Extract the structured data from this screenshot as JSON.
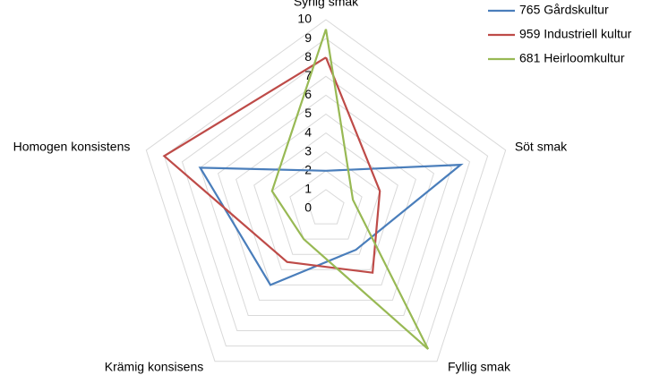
{
  "chart_data": {
    "type": "radar",
    "categories": [
      "Syrlig smak",
      "Söt smak",
      "Fyllig smak",
      "Krämig konsisens",
      "Homogen konsistens"
    ],
    "series": [
      {
        "name": "765 Gårdskultur",
        "color": "#4a7ebb",
        "values": [
          2,
          7.5,
          2.7,
          5,
          7
        ]
      },
      {
        "name": "959 Industriell kultur",
        "color": "#be4b48",
        "values": [
          8,
          3,
          4.2,
          3.5,
          9
        ]
      },
      {
        "name": "681 Heirloomkultur",
        "color": "#98b954",
        "values": [
          9.5,
          1.5,
          9.2,
          2,
          3
        ]
      }
    ],
    "rlim": [
      0,
      10
    ],
    "rticks": [
      0,
      1,
      2,
      3,
      4,
      5,
      6,
      7,
      8,
      9,
      10
    ],
    "grid": true,
    "legend": "top-right"
  }
}
